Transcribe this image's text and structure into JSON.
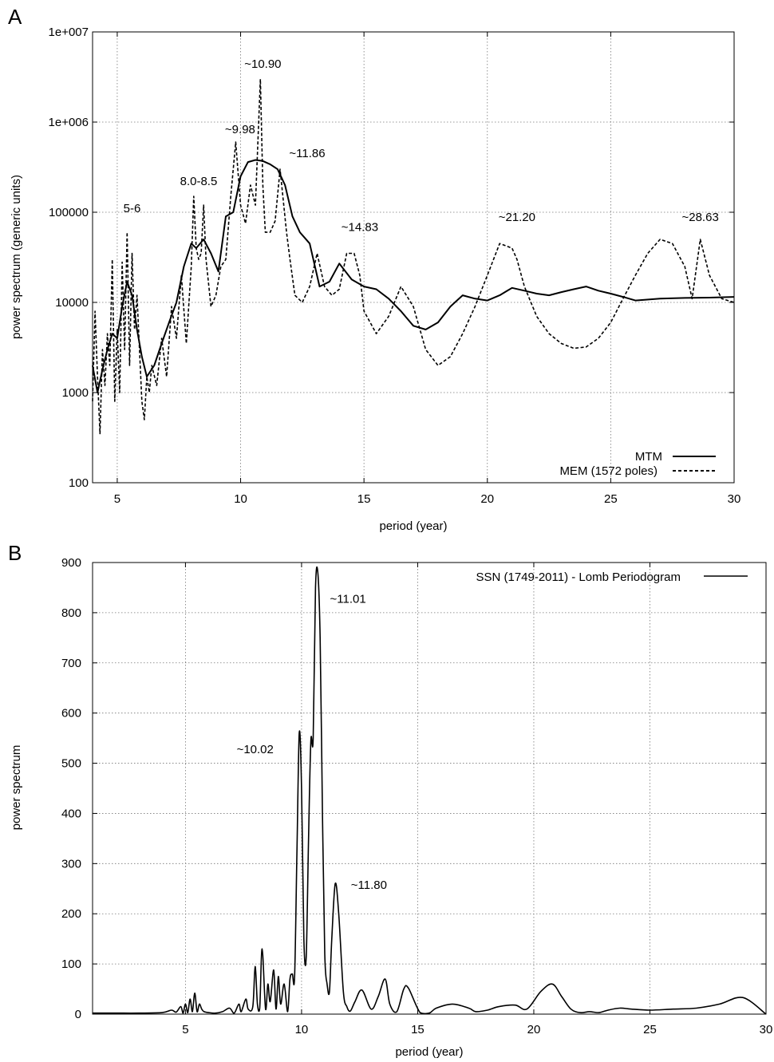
{
  "chart_data": [
    {
      "panel": "A",
      "type": "line",
      "xlabel": "period (year)",
      "ylabel": "power spectrum (generic units)",
      "xlim": [
        4,
        30
      ],
      "ylim": [
        100,
        10000000
      ],
      "yscale": "log",
      "grid": true,
      "legend_placement": "bottom-right",
      "x_ticks": [
        5,
        10,
        15,
        20,
        25,
        30
      ],
      "y_ticks": [
        100,
        1000,
        10000,
        100000,
        1000000,
        10000000
      ],
      "y_tick_labels": [
        "100",
        "1000",
        "10000",
        "100000",
        "1e+006",
        "1e+007"
      ],
      "series": [
        {
          "name": "MTM",
          "style": "solid",
          "x": [
            4.0,
            4.2,
            4.4,
            4.6,
            4.8,
            5.0,
            5.2,
            5.4,
            5.6,
            5.8,
            6.0,
            6.2,
            6.5,
            6.8,
            7.1,
            7.4,
            7.7,
            8.0,
            8.2,
            8.5,
            8.8,
            9.1,
            9.4,
            9.7,
            10.0,
            10.3,
            10.6,
            10.9,
            11.2,
            11.5,
            11.8,
            12.1,
            12.4,
            12.8,
            13.2,
            13.6,
            14.0,
            14.5,
            15.0,
            15.5,
            16.0,
            16.5,
            17.0,
            17.5,
            18.0,
            18.5,
            19.0,
            19.5,
            20.0,
            20.5,
            21.0,
            21.5,
            22.0,
            22.5,
            23.0,
            23.5,
            24.0,
            24.5,
            25.0,
            25.5,
            26.0,
            27.0,
            28.0,
            29.0,
            30.0
          ],
          "values": [
            2000,
            1000,
            1800,
            3000,
            4500,
            4000,
            9000,
            17000,
            12000,
            5000,
            2500,
            1500,
            2000,
            3500,
            6000,
            10000,
            25000,
            45000,
            40000,
            50000,
            35000,
            22000,
            90000,
            100000,
            250000,
            360000,
            380000,
            370000,
            340000,
            300000,
            200000,
            90000,
            60000,
            45000,
            15000,
            17000,
            27000,
            18000,
            15000,
            14000,
            11000,
            8000,
            5500,
            5000,
            6000,
            9000,
            12000,
            11000,
            10500,
            12000,
            14500,
            13500,
            12500,
            12000,
            13000,
            14000,
            15000,
            13500,
            12500,
            11500,
            10500,
            11000,
            11200,
            11300,
            11500
          ]
        },
        {
          "name": "MEM (1572 poles)",
          "style": "dashed",
          "x": [
            4.0,
            4.1,
            4.2,
            4.3,
            4.4,
            4.5,
            4.6,
            4.7,
            4.8,
            4.9,
            5.0,
            5.1,
            5.2,
            5.3,
            5.4,
            5.5,
            5.6,
            5.7,
            5.8,
            5.9,
            6.0,
            6.1,
            6.2,
            6.3,
            6.4,
            6.6,
            6.8,
            7.0,
            7.2,
            7.4,
            7.6,
            7.8,
            8.0,
            8.1,
            8.2,
            8.3,
            8.4,
            8.5,
            8.6,
            8.8,
            9.0,
            9.2,
            9.4,
            9.6,
            9.8,
            10.0,
            10.2,
            10.4,
            10.6,
            10.8,
            10.9,
            11.0,
            11.2,
            11.4,
            11.6,
            11.86,
            12.0,
            12.2,
            12.5,
            12.8,
            13.1,
            13.4,
            13.7,
            14.0,
            14.3,
            14.6,
            14.83,
            15.0,
            15.5,
            16.0,
            16.5,
            17.0,
            17.5,
            18.0,
            18.5,
            19.0,
            19.5,
            20.0,
            20.5,
            21.0,
            21.2,
            21.5,
            22.0,
            22.5,
            23.0,
            23.5,
            24.0,
            24.5,
            25.0,
            25.5,
            26.0,
            26.5,
            27.0,
            27.5,
            28.0,
            28.3,
            28.63,
            29.0,
            29.5,
            30.0
          ],
          "values": [
            800,
            8000,
            1500,
            350,
            3000,
            1200,
            4500,
            2000,
            30000,
            800,
            5000,
            1000,
            28000,
            3000,
            60000,
            2000,
            35000,
            5000,
            12000,
            3000,
            800,
            500,
            1500,
            1000,
            2000,
            1200,
            4000,
            1500,
            9000,
            4000,
            20000,
            3500,
            25000,
            150000,
            40000,
            30000,
            35000,
            120000,
            30000,
            9000,
            12000,
            25000,
            30000,
            150000,
            600000,
            120000,
            75000,
            200000,
            120000,
            3000000,
            200000,
            60000,
            60000,
            80000,
            300000,
            60000,
            30000,
            12000,
            10000,
            15000,
            35000,
            15000,
            12000,
            14000,
            35000,
            35000,
            20000,
            8000,
            4500,
            7000,
            15000,
            9000,
            3000,
            2000,
            2500,
            4500,
            9000,
            20000,
            45000,
            40000,
            30000,
            15000,
            7000,
            4500,
            3500,
            3100,
            3200,
            4000,
            6000,
            11000,
            20000,
            35000,
            50000,
            45000,
            25000,
            11000,
            50000,
            20000,
            11000,
            10000
          ]
        }
      ],
      "annotations": [
        {
          "text": "5-6",
          "x": 5.6,
          "y": 100000
        },
        {
          "text": "8.0-8.5",
          "x": 8.3,
          "y": 200000
        },
        {
          "text": "~9.98",
          "x": 9.98,
          "y": 750000
        },
        {
          "text": "~10.90",
          "x": 10.9,
          "y": 4000000
        },
        {
          "text": "~11.86",
          "x": 12.7,
          "y": 410000
        },
        {
          "text": "~14.83",
          "x": 14.83,
          "y": 62000
        },
        {
          "text": "~21.20",
          "x": 21.2,
          "y": 80000
        },
        {
          "text": "~28.63",
          "x": 28.63,
          "y": 80000
        }
      ]
    },
    {
      "panel": "B",
      "type": "line",
      "xlabel": "period (year)",
      "ylabel": "power spectrum",
      "xlim": [
        1,
        30
      ],
      "ylim": [
        0,
        900
      ],
      "grid": true,
      "legend_placement": "top-right",
      "x_ticks": [
        5,
        10,
        15,
        20,
        25,
        30
      ],
      "y_ticks": [
        0,
        100,
        200,
        300,
        400,
        500,
        600,
        700,
        800,
        900
      ],
      "series": [
        {
          "name": "SSN (1749-2011) - Lomb Periodogram",
          "style": "solid",
          "x": [
            1.0,
            2.0,
            3.0,
            4.0,
            4.4,
            4.6,
            4.8,
            4.9,
            5.0,
            5.1,
            5.2,
            5.3,
            5.4,
            5.5,
            5.6,
            5.7,
            5.8,
            6.0,
            6.3,
            6.6,
            6.9,
            7.1,
            7.3,
            7.4,
            7.6,
            7.7,
            7.9,
            8.0,
            8.1,
            8.2,
            8.3,
            8.45,
            8.55,
            8.65,
            8.8,
            8.9,
            9.0,
            9.1,
            9.25,
            9.4,
            9.5,
            9.6,
            9.7,
            9.8,
            9.9,
            10.0,
            10.1,
            10.2,
            10.3,
            10.4,
            10.5,
            10.6,
            10.7,
            10.8,
            10.9,
            11.0,
            11.1,
            11.2,
            11.3,
            11.45,
            11.6,
            11.8,
            11.95,
            12.1,
            12.3,
            12.6,
            13.0,
            13.3,
            13.6,
            13.8,
            14.1,
            14.4,
            14.6,
            15.1,
            15.5,
            15.8,
            16.5,
            17.2,
            17.5,
            18.0,
            18.5,
            19.2,
            19.7,
            20.3,
            20.8,
            21.2,
            21.6,
            22.0,
            22.4,
            22.8,
            23.2,
            23.7,
            24.2,
            25.0,
            26.0,
            27.0,
            28.0,
            29.0,
            30.0
          ],
          "values": [
            2,
            2,
            2,
            3,
            8,
            4,
            15,
            2,
            20,
            3,
            30,
            5,
            42,
            5,
            20,
            10,
            5,
            3,
            2,
            5,
            12,
            2,
            20,
            5,
            30,
            10,
            15,
            95,
            20,
            12,
            130,
            10,
            60,
            25,
            88,
            10,
            75,
            20,
            60,
            5,
            70,
            80,
            75,
            320,
            560,
            450,
            150,
            115,
            350,
            545,
            550,
            850,
            880,
            750,
            400,
            120,
            60,
            45,
            150,
            260,
            200,
            45,
            15,
            6,
            25,
            48,
            10,
            35,
            70,
            20,
            5,
            50,
            52,
            3,
            2,
            12,
            20,
            12,
            5,
            8,
            15,
            18,
            10,
            45,
            60,
            35,
            10,
            3,
            5,
            3,
            8,
            12,
            10,
            8,
            10,
            12,
            20,
            33,
            0
          ]
        }
      ],
      "annotations": [
        {
          "text": "~10.02",
          "x": 8.0,
          "y": 520
        },
        {
          "text": "~11.01",
          "x": 12.0,
          "y": 820
        },
        {
          "text": "~11.80",
          "x": 12.9,
          "y": 250
        }
      ]
    }
  ],
  "panel_a": {
    "letter": "A",
    "xlabel": "period (year)",
    "ylabel": "power spectrum (generic units)",
    "legend_mtm": "MTM",
    "legend_mem": "MEM (1572 poles)",
    "x_ticks": [
      "5",
      "10",
      "15",
      "20",
      "25",
      "30"
    ],
    "y_ticks": [
      "100",
      "1000",
      "10000",
      "100000",
      "1e+006",
      "1e+007"
    ],
    "annotations": [
      "5-6",
      "8.0-8.5",
      "~9.98",
      "~10.90",
      "~11.86",
      "~14.83",
      "~21.20",
      "~28.63"
    ]
  },
  "panel_b": {
    "letter": "B",
    "xlabel": "period (year)",
    "ylabel": "power spectrum",
    "legend_ssn": "SSN (1749-2011) - Lomb Periodogram",
    "x_ticks": [
      "5",
      "10",
      "15",
      "20",
      "25",
      "30"
    ],
    "y_ticks": [
      "0",
      "100",
      "200",
      "300",
      "400",
      "500",
      "600",
      "700",
      "800",
      "900"
    ],
    "annotations": [
      "~10.02",
      "~11.01",
      "~11.80"
    ]
  }
}
